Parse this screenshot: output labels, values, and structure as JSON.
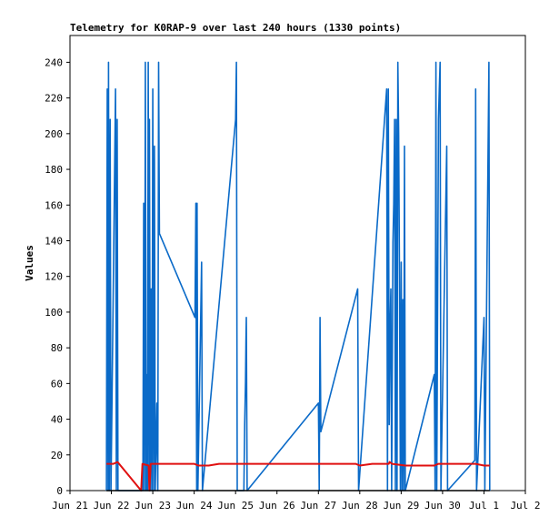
{
  "chart_data": {
    "type": "line",
    "title": "Telemetry for K0RAP-9 over last 240 hours (1330 points)",
    "xlabel": "",
    "ylabel": "Values",
    "ylim": [
      0,
      255
    ],
    "xlim_days": [
      21,
      32
    ],
    "x_ticks": [
      {
        "day": 21,
        "label": "Jun 21"
      },
      {
        "day": 22,
        "label": "Jun 22"
      },
      {
        "day": 23,
        "label": "Jun 23"
      },
      {
        "day": 24,
        "label": "Jun 24"
      },
      {
        "day": 25,
        "label": "Jun 25"
      },
      {
        "day": 26,
        "label": "Jun 26"
      },
      {
        "day": 27,
        "label": "Jun 27"
      },
      {
        "day": 28,
        "label": "Jun 28"
      },
      {
        "day": 29,
        "label": "Jun 29"
      },
      {
        "day": 30,
        "label": "Jun 30"
      },
      {
        "day": 31,
        "label": "Jul 1"
      },
      {
        "day": 32,
        "label": "Jul 2"
      }
    ],
    "y_ticks": [
      0,
      20,
      40,
      60,
      80,
      100,
      120,
      140,
      160,
      180,
      200,
      220,
      240
    ],
    "grid": false,
    "series": [
      {
        "color": "#0a6ac8",
        "points": [
          [
            21.88,
            0
          ],
          [
            21.9,
            225
          ],
          [
            21.92,
            0
          ],
          [
            21.93,
            240
          ],
          [
            21.95,
            0
          ],
          [
            21.97,
            208
          ],
          [
            21.99,
            0
          ],
          [
            22.1,
            225
          ],
          [
            22.12,
            0
          ],
          [
            22.14,
            208
          ],
          [
            22.16,
            0
          ],
          [
            22.76,
            0
          ],
          [
            22.78,
            161
          ],
          [
            22.8,
            0
          ],
          [
            22.82,
            240
          ],
          [
            22.84,
            0
          ],
          [
            22.85,
            65
          ],
          [
            22.87,
            0
          ],
          [
            22.89,
            240
          ],
          [
            22.91,
            0
          ],
          [
            22.92,
            208
          ],
          [
            22.94,
            0
          ],
          [
            22.96,
            113
          ],
          [
            22.98,
            0
          ],
          [
            23.0,
            225
          ],
          [
            23.02,
            0
          ],
          [
            23.04,
            193
          ],
          [
            23.06,
            0
          ],
          [
            23.1,
            49
          ],
          [
            23.12,
            0
          ],
          [
            23.14,
            240
          ],
          [
            23.16,
            144
          ],
          [
            24.02,
            97
          ],
          [
            24.04,
            161
          ],
          [
            24.06,
            0
          ],
          [
            24.07,
            161
          ],
          [
            24.09,
            0
          ],
          [
            24.18,
            128
          ],
          [
            24.2,
            0
          ],
          [
            25.0,
            208
          ],
          [
            25.02,
            240
          ],
          [
            25.04,
            0
          ],
          [
            25.2,
            0
          ],
          [
            25.22,
            37
          ],
          [
            25.24,
            61
          ],
          [
            25.25,
            84
          ],
          [
            25.26,
            97
          ],
          [
            25.28,
            0
          ],
          [
            27.0,
            49
          ],
          [
            27.02,
            0
          ],
          [
            27.04,
            97
          ],
          [
            27.06,
            33
          ],
          [
            27.95,
            113
          ],
          [
            27.97,
            0
          ],
          [
            28.65,
            225
          ],
          [
            28.67,
            0
          ],
          [
            28.69,
            225
          ],
          [
            28.71,
            37
          ],
          [
            28.73,
            89
          ],
          [
            28.75,
            113
          ],
          [
            28.77,
            0
          ],
          [
            28.8,
            139
          ],
          [
            28.82,
            161
          ],
          [
            28.84,
            208
          ],
          [
            28.86,
            0
          ],
          [
            28.88,
            208
          ],
          [
            28.9,
            0
          ],
          [
            28.92,
            240
          ],
          [
            28.94,
            200
          ],
          [
            28.96,
            120
          ],
          [
            28.98,
            0
          ],
          [
            29.0,
            128
          ],
          [
            29.02,
            0
          ],
          [
            29.04,
            107
          ],
          [
            29.06,
            0
          ],
          [
            29.08,
            193
          ],
          [
            29.1,
            0
          ],
          [
            29.8,
            65
          ],
          [
            29.82,
            0
          ],
          [
            29.84,
            240
          ],
          [
            29.86,
            0
          ],
          [
            29.9,
            208
          ],
          [
            29.92,
            225
          ],
          [
            29.94,
            240
          ],
          [
            29.96,
            0
          ],
          [
            30.1,
            193
          ],
          [
            30.12,
            0
          ],
          [
            30.78,
            17
          ],
          [
            30.8,
            225
          ],
          [
            30.82,
            0
          ],
          [
            31.0,
            97
          ],
          [
            31.02,
            0
          ],
          [
            31.12,
            240
          ],
          [
            31.14,
            0
          ]
        ]
      },
      {
        "color": "#e01010",
        "points": [
          [
            21.88,
            15
          ],
          [
            22.05,
            15
          ],
          [
            22.15,
            16
          ],
          [
            22.72,
            0
          ],
          [
            22.75,
            15
          ],
          [
            22.9,
            14
          ],
          [
            22.92,
            0
          ],
          [
            22.95,
            15
          ],
          [
            23.1,
            15
          ],
          [
            23.3,
            15
          ],
          [
            23.6,
            15
          ],
          [
            24.0,
            15
          ],
          [
            24.1,
            14
          ],
          [
            24.2,
            14
          ],
          [
            24.35,
            14
          ],
          [
            24.6,
            15
          ],
          [
            24.9,
            15
          ],
          [
            25.0,
            15
          ],
          [
            25.3,
            15
          ],
          [
            26.0,
            15
          ],
          [
            27.0,
            15
          ],
          [
            27.9,
            15
          ],
          [
            28.0,
            14
          ],
          [
            28.3,
            15
          ],
          [
            28.7,
            15
          ],
          [
            28.72,
            16
          ],
          [
            28.78,
            15
          ],
          [
            29.1,
            14
          ],
          [
            29.8,
            14
          ],
          [
            29.9,
            15
          ],
          [
            30.0,
            15
          ],
          [
            30.5,
            15
          ],
          [
            30.8,
            15
          ],
          [
            31.0,
            14
          ],
          [
            31.14,
            14
          ]
        ]
      },
      {
        "color": "#000000",
        "points": [
          [
            21.88,
            0
          ],
          [
            31.14,
            0
          ]
        ]
      }
    ]
  }
}
